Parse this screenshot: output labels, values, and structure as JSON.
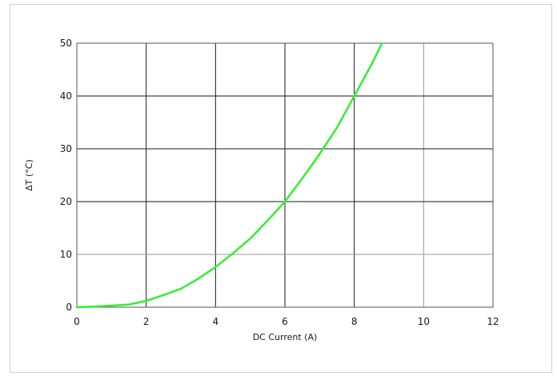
{
  "chart_data": {
    "type": "line",
    "title": "",
    "xlabel": "DC Current (A)",
    "ylabel": "ΔT (°C)",
    "xlim": [
      0,
      12
    ],
    "ylim": [
      0,
      50
    ],
    "x_ticks": [
      0,
      2,
      4,
      6,
      8,
      10,
      12
    ],
    "y_ticks": [
      0,
      10,
      20,
      30,
      40,
      50
    ],
    "x_tick_labels": [
      "0",
      "2",
      "4",
      "6",
      "8",
      "10",
      "12"
    ],
    "y_tick_labels": [
      "0",
      "10",
      "20",
      "30",
      "40",
      "50"
    ],
    "grid": true,
    "legend": "none",
    "series": [
      {
        "color": "#33ee33",
        "x": [
          0,
          0.5,
          1,
          1.5,
          2,
          2.5,
          3,
          3.5,
          4,
          4.5,
          5,
          5.5,
          6,
          6.5,
          7,
          7.5,
          8,
          8.5,
          8.8
        ],
        "y": [
          0,
          0.1,
          0.3,
          0.5,
          1.2,
          2.3,
          3.5,
          5.4,
          7.6,
          10.2,
          13.0,
          16.4,
          20.0,
          24.4,
          29.0,
          34.0,
          40.0,
          46.0,
          50.0
        ]
      }
    ]
  }
}
